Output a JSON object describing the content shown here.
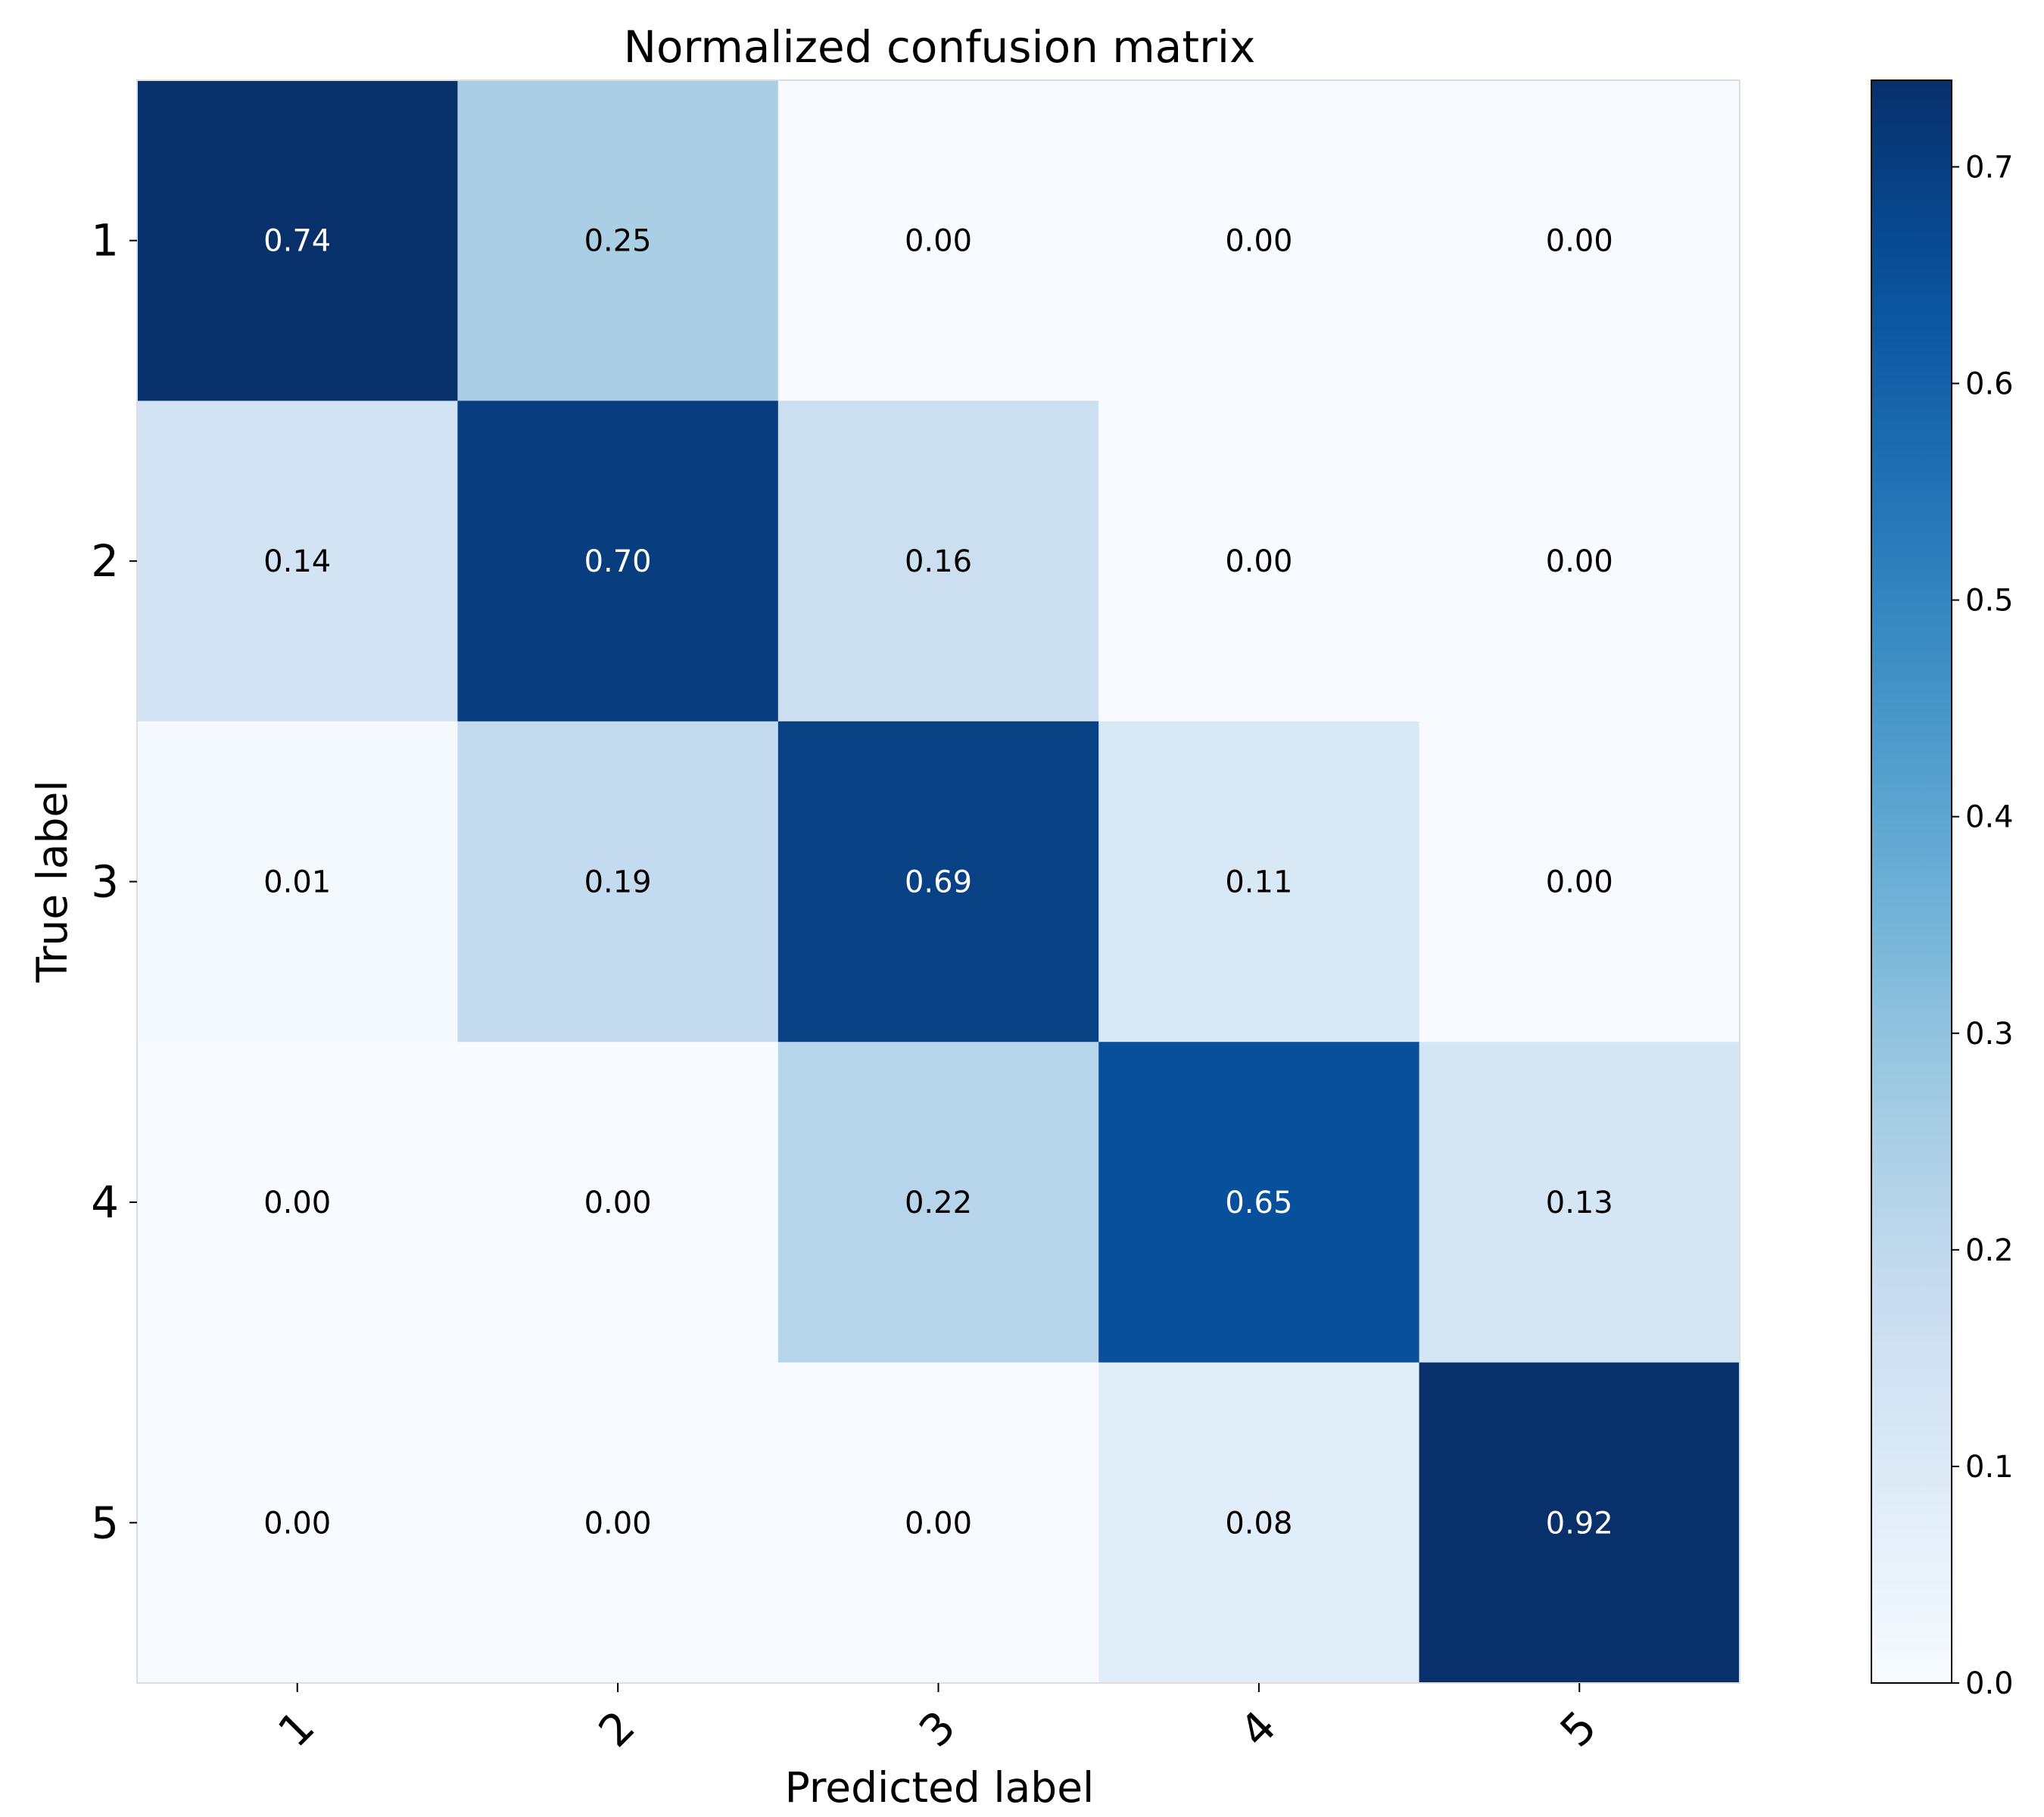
{
  "chart_data": {
    "type": "heatmap",
    "title": "Normalized confusion matrix",
    "xlabel": "Predicted label",
    "ylabel": "True label",
    "x_categories": [
      "1",
      "2",
      "3",
      "4",
      "5"
    ],
    "y_categories": [
      "1",
      "2",
      "3",
      "4",
      "5"
    ],
    "values": [
      [
        0.74,
        0.25,
        0.0,
        0.0,
        0.0
      ],
      [
        0.14,
        0.7,
        0.16,
        0.0,
        0.0
      ],
      [
        0.01,
        0.19,
        0.69,
        0.11,
        0.0
      ],
      [
        0.0,
        0.0,
        0.22,
        0.65,
        0.13
      ],
      [
        0.0,
        0.0,
        0.0,
        0.08,
        0.92
      ]
    ],
    "colormap": "Blues",
    "color_range": [
      0,
      0.74
    ],
    "colorbar_ticks": [
      "0.0",
      "0.1",
      "0.2",
      "0.3",
      "0.4",
      "0.5",
      "0.6",
      "0.7"
    ],
    "colorbar_tick_values": [
      0.0,
      0.1,
      0.2,
      0.3,
      0.4,
      0.5,
      0.6,
      0.7
    ],
    "text_light_color": "#ffffff",
    "text_dark_color": "#000000",
    "grid": false
  }
}
